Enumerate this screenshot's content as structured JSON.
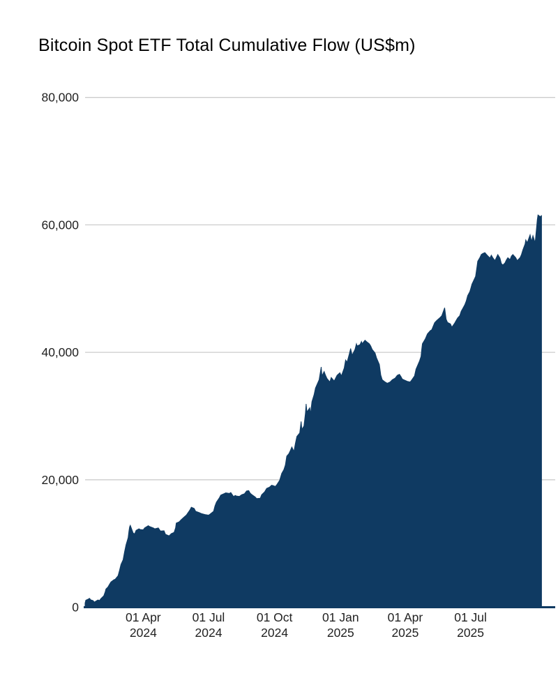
{
  "title": "Bitcoin Spot ETF Total Cumulative Flow (US$m)",
  "chart_data": {
    "type": "area",
    "title": "Bitcoin Spot ETF Total Cumulative Flow (US$m)",
    "xlabel": "",
    "ylabel": "",
    "legend": "none",
    "grid": true,
    "y_axis": {
      "range": [
        0,
        80000
      ],
      "ticks": [
        {
          "value": 0,
          "label": "0"
        },
        {
          "value": 20000,
          "label": "20,000"
        },
        {
          "value": 40000,
          "label": "40,000"
        },
        {
          "value": 60000,
          "label": "60,000"
        },
        {
          "value": 80000,
          "label": "80,000"
        }
      ]
    },
    "x_axis": {
      "start_date": "2024-01-11",
      "end_date": "2025-10-08",
      "ticks": [
        {
          "date": "2024-04-01",
          "label": [
            "01 Apr",
            "2024"
          ]
        },
        {
          "date": "2024-07-01",
          "label": [
            "01 Jul",
            "2024"
          ]
        },
        {
          "date": "2024-10-01",
          "label": [
            "01 Oct",
            "2024"
          ]
        },
        {
          "date": "2025-01-01",
          "label": [
            "01 Jan",
            "2025"
          ]
        },
        {
          "date": "2025-04-01",
          "label": [
            "01 Apr",
            "2025"
          ]
        },
        {
          "date": "2025-07-01",
          "label": [
            "01 Jul",
            "2025"
          ]
        }
      ]
    },
    "colors": {
      "area_fill": "#0f3a62",
      "axis_line": "#0f3a62",
      "gridline": "#cccccc",
      "tick_text": "#222222",
      "title_text": "#000000",
      "background": "#ffffff"
    },
    "series": [
      {
        "name": "Total Cumulative Flow (US$m)",
        "points": [
          [
            "2024-01-11",
            650
          ],
          [
            "2024-01-12",
            1100
          ],
          [
            "2024-01-16",
            1300
          ],
          [
            "2024-01-17",
            1400
          ],
          [
            "2024-01-19",
            1150
          ],
          [
            "2024-01-22",
            1050
          ],
          [
            "2024-01-24",
            800
          ],
          [
            "2024-01-26",
            950
          ],
          [
            "2024-01-29",
            1150
          ],
          [
            "2024-01-31",
            1050
          ],
          [
            "2024-02-02",
            1350
          ],
          [
            "2024-02-06",
            1800
          ],
          [
            "2024-02-08",
            2400
          ],
          [
            "2024-02-09",
            2850
          ],
          [
            "2024-02-12",
            3200
          ],
          [
            "2024-02-14",
            3600
          ],
          [
            "2024-02-16",
            3950
          ],
          [
            "2024-02-20",
            4300
          ],
          [
            "2024-02-22",
            4400
          ],
          [
            "2024-02-26",
            4950
          ],
          [
            "2024-02-28",
            5800
          ],
          [
            "2024-03-01",
            6700
          ],
          [
            "2024-03-04",
            7450
          ],
          [
            "2024-03-06",
            8700
          ],
          [
            "2024-03-08",
            9800
          ],
          [
            "2024-03-11",
            10900
          ],
          [
            "2024-03-12",
            11900
          ],
          [
            "2024-03-13",
            12600
          ],
          [
            "2024-03-14",
            12850
          ],
          [
            "2024-03-18",
            11650
          ],
          [
            "2024-03-20",
            11500
          ],
          [
            "2024-03-22",
            12050
          ],
          [
            "2024-03-26",
            12300
          ],
          [
            "2024-03-28",
            12200
          ],
          [
            "2024-04-01",
            12150
          ],
          [
            "2024-04-03",
            12450
          ],
          [
            "2024-04-08",
            12800
          ],
          [
            "2024-04-10",
            12650
          ],
          [
            "2024-04-15",
            12450
          ],
          [
            "2024-04-17",
            12300
          ],
          [
            "2024-04-22",
            12450
          ],
          [
            "2024-04-25",
            11950
          ],
          [
            "2024-04-30",
            12000
          ],
          [
            "2024-05-02",
            11450
          ],
          [
            "2024-05-07",
            11200
          ],
          [
            "2024-05-10",
            11550
          ],
          [
            "2024-05-14",
            11750
          ],
          [
            "2024-05-16",
            12450
          ],
          [
            "2024-05-17",
            13200
          ],
          [
            "2024-05-21",
            13400
          ],
          [
            "2024-05-24",
            13750
          ],
          [
            "2024-05-29",
            14250
          ],
          [
            "2024-05-31",
            14450
          ],
          [
            "2024-06-05",
            15250
          ],
          [
            "2024-06-07",
            15700
          ],
          [
            "2024-06-11",
            15500
          ],
          [
            "2024-06-13",
            15050
          ],
          [
            "2024-06-18",
            14850
          ],
          [
            "2024-06-21",
            14700
          ],
          [
            "2024-06-26",
            14550
          ],
          [
            "2024-07-01",
            14450
          ],
          [
            "2024-07-03",
            14600
          ],
          [
            "2024-07-08",
            15050
          ],
          [
            "2024-07-10",
            15900
          ],
          [
            "2024-07-12",
            16500
          ],
          [
            "2024-07-16",
            17150
          ],
          [
            "2024-07-18",
            17600
          ],
          [
            "2024-07-22",
            17800
          ],
          [
            "2024-07-25",
            17950
          ],
          [
            "2024-07-30",
            17850
          ],
          [
            "2024-08-01",
            18000
          ],
          [
            "2024-08-05",
            17350
          ],
          [
            "2024-08-07",
            17550
          ],
          [
            "2024-08-09",
            17450
          ],
          [
            "2024-08-13",
            17400
          ],
          [
            "2024-08-16",
            17650
          ],
          [
            "2024-08-20",
            17800
          ],
          [
            "2024-08-23",
            18250
          ],
          [
            "2024-08-26",
            18300
          ],
          [
            "2024-08-28",
            17900
          ],
          [
            "2024-08-30",
            17700
          ],
          [
            "2024-09-04",
            17300
          ],
          [
            "2024-09-06",
            17050
          ],
          [
            "2024-09-11",
            17100
          ],
          [
            "2024-09-13",
            17650
          ],
          [
            "2024-09-17",
            18100
          ],
          [
            "2024-09-20",
            18650
          ],
          [
            "2024-09-24",
            18850
          ],
          [
            "2024-09-27",
            19150
          ],
          [
            "2024-09-30",
            19050
          ],
          [
            "2024-10-02",
            18950
          ],
          [
            "2024-10-04",
            19200
          ],
          [
            "2024-10-08",
            19900
          ],
          [
            "2024-10-11",
            21000
          ],
          [
            "2024-10-14",
            21600
          ],
          [
            "2024-10-16",
            22300
          ],
          [
            "2024-10-18",
            23700
          ],
          [
            "2024-10-21",
            24100
          ],
          [
            "2024-10-23",
            24600
          ],
          [
            "2024-10-25",
            25150
          ],
          [
            "2024-10-28",
            24450
          ],
          [
            "2024-10-30",
            25700
          ],
          [
            "2024-11-01",
            26800
          ],
          [
            "2024-11-05",
            27350
          ],
          [
            "2024-11-07",
            29150
          ],
          [
            "2024-11-08",
            27900
          ],
          [
            "2024-11-11",
            28450
          ],
          [
            "2024-11-13",
            30450
          ],
          [
            "2024-11-14",
            31900
          ],
          [
            "2024-11-15",
            30650
          ],
          [
            "2024-11-19",
            31300
          ],
          [
            "2024-11-20",
            30250
          ],
          [
            "2024-11-22",
            32250
          ],
          [
            "2024-11-25",
            33350
          ],
          [
            "2024-11-27",
            34400
          ],
          [
            "2024-12-02",
            35700
          ],
          [
            "2024-12-05",
            37700
          ],
          [
            "2024-12-06",
            36300
          ],
          [
            "2024-12-09",
            37000
          ],
          [
            "2024-12-11",
            36400
          ],
          [
            "2024-12-13",
            35900
          ],
          [
            "2024-12-17",
            35350
          ],
          [
            "2024-12-19",
            36050
          ],
          [
            "2024-12-23",
            35500
          ],
          [
            "2024-12-27",
            36400
          ],
          [
            "2024-12-31",
            36800
          ],
          [
            "2025-01-02",
            36300
          ],
          [
            "2025-01-06",
            37550
          ],
          [
            "2025-01-08",
            38800
          ],
          [
            "2025-01-10",
            38450
          ],
          [
            "2025-01-13",
            39700
          ],
          [
            "2025-01-15",
            40600
          ],
          [
            "2025-01-17",
            39550
          ],
          [
            "2025-01-21",
            40450
          ],
          [
            "2025-01-23",
            41350
          ],
          [
            "2025-01-24",
            41000
          ],
          [
            "2025-01-28",
            41200
          ],
          [
            "2025-01-30",
            41700
          ],
          [
            "2025-01-31",
            41350
          ],
          [
            "2025-02-04",
            41900
          ],
          [
            "2025-02-06",
            41700
          ],
          [
            "2025-02-10",
            41350
          ],
          [
            "2025-02-12",
            41000
          ],
          [
            "2025-02-14",
            40450
          ],
          [
            "2025-02-18",
            39900
          ],
          [
            "2025-02-20",
            39150
          ],
          [
            "2025-02-24",
            38100
          ],
          [
            "2025-02-26",
            36450
          ],
          [
            "2025-02-28",
            35700
          ],
          [
            "2025-03-04",
            35350
          ],
          [
            "2025-03-07",
            35150
          ],
          [
            "2025-03-11",
            35350
          ],
          [
            "2025-03-14",
            35700
          ],
          [
            "2025-03-18",
            35950
          ],
          [
            "2025-03-21",
            36400
          ],
          [
            "2025-03-24",
            36550
          ],
          [
            "2025-03-26",
            36200
          ],
          [
            "2025-03-28",
            35800
          ],
          [
            "2025-04-01",
            35600
          ],
          [
            "2025-04-04",
            35450
          ],
          [
            "2025-04-08",
            35350
          ],
          [
            "2025-04-10",
            35650
          ],
          [
            "2025-04-14",
            36300
          ],
          [
            "2025-04-16",
            37350
          ],
          [
            "2025-04-21",
            38650
          ],
          [
            "2025-04-23",
            39350
          ],
          [
            "2025-04-24",
            40450
          ],
          [
            "2025-04-25",
            41350
          ],
          [
            "2025-04-29",
            42100
          ],
          [
            "2025-05-02",
            42900
          ],
          [
            "2025-05-06",
            43400
          ],
          [
            "2025-05-08",
            43550
          ],
          [
            "2025-05-12",
            44650
          ],
          [
            "2025-05-15",
            45000
          ],
          [
            "2025-05-19",
            45400
          ],
          [
            "2025-05-22",
            45750
          ],
          [
            "2025-05-26",
            47000
          ],
          [
            "2025-05-28",
            45200
          ],
          [
            "2025-05-30",
            44700
          ],
          [
            "2025-06-03",
            44450
          ],
          [
            "2025-06-05",
            43950
          ],
          [
            "2025-06-09",
            44600
          ],
          [
            "2025-06-11",
            45000
          ],
          [
            "2025-06-13",
            45400
          ],
          [
            "2025-06-16",
            45750
          ],
          [
            "2025-06-18",
            46450
          ],
          [
            "2025-06-20",
            46850
          ],
          [
            "2025-06-23",
            47450
          ],
          [
            "2025-06-25",
            48050
          ],
          [
            "2025-06-27",
            48900
          ],
          [
            "2025-06-30",
            49500
          ],
          [
            "2025-07-01",
            49900
          ],
          [
            "2025-07-03",
            50700
          ],
          [
            "2025-07-08",
            51900
          ],
          [
            "2025-07-10",
            53400
          ],
          [
            "2025-07-11",
            54300
          ],
          [
            "2025-07-14",
            54850
          ],
          [
            "2025-07-16",
            55350
          ],
          [
            "2025-07-18",
            55500
          ],
          [
            "2025-07-21",
            55650
          ],
          [
            "2025-07-23",
            55400
          ],
          [
            "2025-07-25",
            55150
          ],
          [
            "2025-07-28",
            54800
          ],
          [
            "2025-07-30",
            55250
          ],
          [
            "2025-08-01",
            54850
          ],
          [
            "2025-08-04",
            54400
          ],
          [
            "2025-08-06",
            54850
          ],
          [
            "2025-08-08",
            55350
          ],
          [
            "2025-08-11",
            54800
          ],
          [
            "2025-08-13",
            53950
          ],
          [
            "2025-08-15",
            53700
          ],
          [
            "2025-08-18",
            54050
          ],
          [
            "2025-08-20",
            54500
          ],
          [
            "2025-08-22",
            54850
          ],
          [
            "2025-08-25",
            54550
          ],
          [
            "2025-08-27",
            55100
          ],
          [
            "2025-08-29",
            55350
          ],
          [
            "2025-09-02",
            54850
          ],
          [
            "2025-09-04",
            54400
          ],
          [
            "2025-09-08",
            54850
          ],
          [
            "2025-09-10",
            55350
          ],
          [
            "2025-09-12",
            56100
          ],
          [
            "2025-09-15",
            57000
          ],
          [
            "2025-09-16",
            57650
          ],
          [
            "2025-09-18",
            57200
          ],
          [
            "2025-09-22",
            58450
          ],
          [
            "2025-09-24",
            57400
          ],
          [
            "2025-09-26",
            58300
          ],
          [
            "2025-09-29",
            57200
          ],
          [
            "2025-10-01",
            59500
          ],
          [
            "2025-10-02",
            60800
          ],
          [
            "2025-10-03",
            61550
          ],
          [
            "2025-10-06",
            61300
          ],
          [
            "2025-10-08",
            61450
          ]
        ]
      }
    ]
  }
}
